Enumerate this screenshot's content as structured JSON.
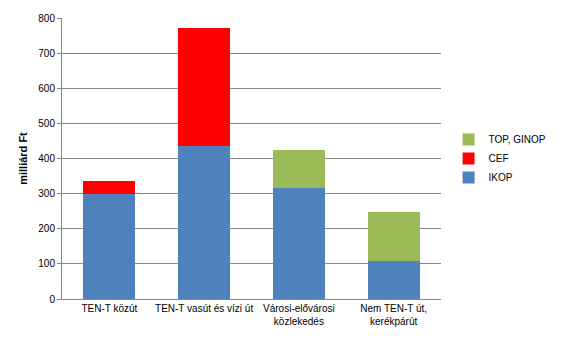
{
  "chart_data": {
    "type": "bar",
    "y_label": "milliárd Ft",
    "categories": [
      "TEN-T közút",
      "TEN-T vasút és vízi út",
      "Városi-elővárosi közlekedés",
      "Nem TEN-T út, kerékpárút"
    ],
    "series": [
      {
        "name": "IKOP",
        "color": "#4f81bd",
        "values": [
          300,
          435,
          315,
          107
        ]
      },
      {
        "name": "CEF",
        "color": "#ff0000",
        "values": [
          37,
          337,
          0,
          0
        ]
      },
      {
        "name": "TOP, GINOP",
        "color": "#9bbb59",
        "values": [
          0,
          0,
          108,
          140
        ]
      }
    ],
    "ylim": [
      0,
      800
    ],
    "yticks": [
      0,
      100,
      200,
      300,
      400,
      500,
      600,
      700,
      800
    ],
    "stacked": true,
    "grid": true,
    "legend": "right"
  }
}
